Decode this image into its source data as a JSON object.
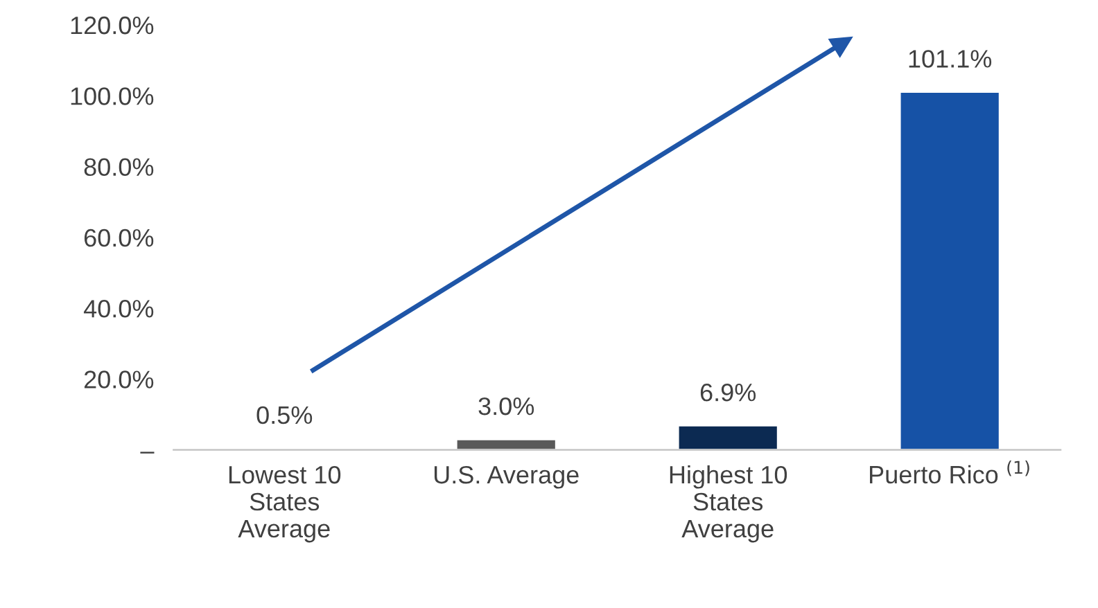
{
  "chart_data": {
    "type": "bar",
    "categories": [
      "Lowest 10\nStates\nAverage",
      "U.S. Average",
      "Highest 10\nStates\nAverage",
      "Puerto Rico $^{(1)}$"
    ],
    "values": [
      0.5,
      3.0,
      6.9,
      101.1
    ],
    "colors": [
      "#7f7f7f",
      "#595959",
      "#0c2a52",
      "#1652a6"
    ],
    "value_labels": [
      "0.5%",
      "3.0%",
      "6.9%",
      "101.1%"
    ],
    "ylim": [
      0,
      120
    ],
    "yticks": [
      {
        "value": 0,
        "label": "–"
      },
      {
        "value": 20,
        "label": "20.0%"
      },
      {
        "value": 40,
        "label": "40.0%"
      },
      {
        "value": 60,
        "label": "60.0%"
      },
      {
        "value": 80,
        "label": "80.0%"
      },
      {
        "value": 100,
        "label": "100.0%"
      },
      {
        "value": 120,
        "label": "120.0%"
      }
    ],
    "grid": false,
    "legend": false
  }
}
